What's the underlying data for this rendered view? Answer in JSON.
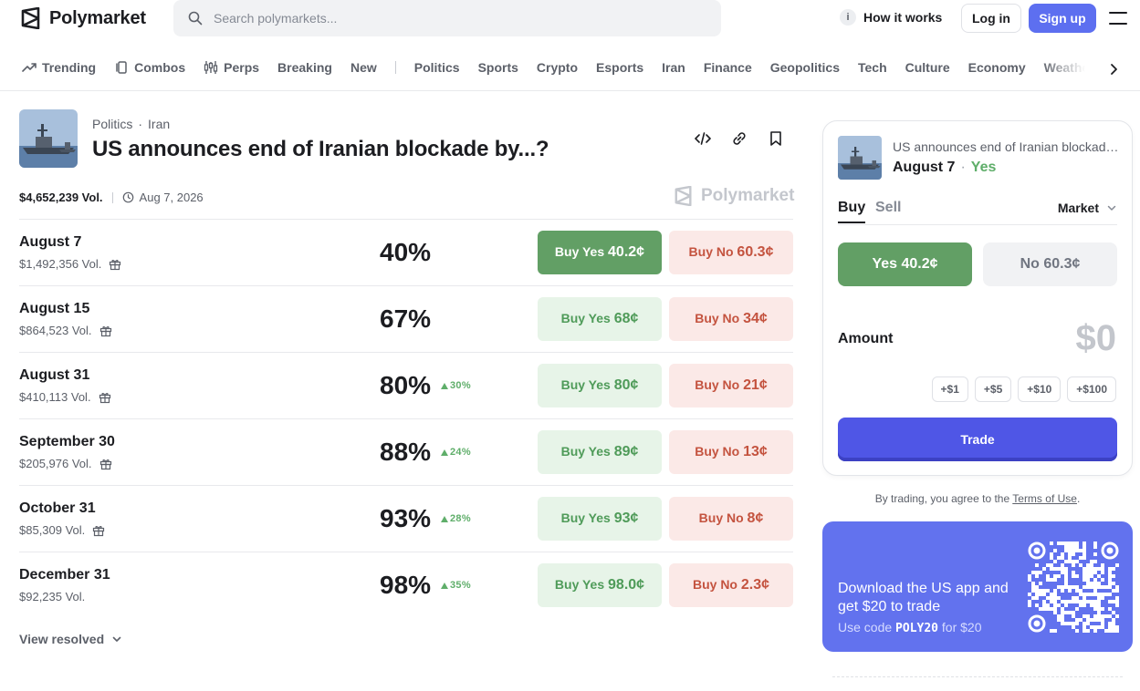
{
  "brand": {
    "name": "Polymarket"
  },
  "search": {
    "placeholder": "Search polymarkets..."
  },
  "header": {
    "how_it_works": "How it works",
    "login": "Log in",
    "signup": "Sign up"
  },
  "nav": {
    "primary": [
      {
        "label": "Trending",
        "icon": "trending-icon"
      },
      {
        "label": "Combos",
        "icon": "combos-icon"
      },
      {
        "label": "Perps",
        "icon": "perps-icon"
      },
      {
        "label": "Breaking"
      },
      {
        "label": "New"
      }
    ],
    "categories": [
      "Politics",
      "Sports",
      "Crypto",
      "Esports",
      "Iran",
      "Finance",
      "Geopolitics",
      "Tech",
      "Culture",
      "Economy",
      "Weather"
    ]
  },
  "event": {
    "breadcrumb": [
      "Politics",
      "Iran"
    ],
    "title": "US announces end of Iranian blockade by...?",
    "volume": "$4,652,239 Vol.",
    "end_date": "Aug 7, 2026",
    "watermark": "Polymarket"
  },
  "markets": [
    {
      "label": "August 7",
      "volume": "$1,492,356 Vol.",
      "gift": true,
      "pct": "40%",
      "change": "",
      "yes": "40.2¢",
      "no": "60.3¢",
      "active": true
    },
    {
      "label": "August 15",
      "volume": "$864,523 Vol.",
      "gift": true,
      "pct": "67%",
      "change": "",
      "yes": "68¢",
      "no": "34¢",
      "active": false
    },
    {
      "label": "August 31",
      "volume": "$410,113 Vol.",
      "gift": true,
      "pct": "80%",
      "change": "30%",
      "yes": "80¢",
      "no": "21¢",
      "active": false
    },
    {
      "label": "September 30",
      "volume": "$205,976 Vol.",
      "gift": true,
      "pct": "88%",
      "change": "24%",
      "yes": "89¢",
      "no": "13¢",
      "active": false
    },
    {
      "label": "October 31",
      "volume": "$85,309 Vol.",
      "gift": true,
      "pct": "93%",
      "change": "28%",
      "yes": "93¢",
      "no": "8¢",
      "active": false
    },
    {
      "label": "December 31",
      "volume": "$92,235 Vol.",
      "gift": false,
      "pct": "98%",
      "change": "35%",
      "yes": "98.0¢",
      "no": "2.3¢",
      "active": false
    }
  ],
  "labels": {
    "buy_yes": "Buy Yes",
    "buy_no": "Buy No",
    "view_resolved": "View resolved"
  },
  "trade": {
    "question": "US announces end of Iranian blockade by...?",
    "outcome_date": "August 7",
    "outcome_side": "Yes",
    "tab_buy": "Buy",
    "tab_sell": "Sell",
    "order_type": "Market",
    "yes_label": "Yes",
    "yes_price": "40.2¢",
    "no_label": "No",
    "no_price": "60.3¢",
    "amount_label": "Amount",
    "amount_value": "$0",
    "quick_amounts": [
      "+$1",
      "+$5",
      "+$10",
      "+$100"
    ],
    "trade_button": "Trade",
    "terms_prefix": "By trading, you agree to the",
    "terms_link": "Terms of Use",
    "terms_suffix": "."
  },
  "promo": {
    "title": "Download the US app and get $20 to trade",
    "code_prefix": "Use code",
    "code": "POLY20",
    "code_suffix": "for $20"
  },
  "colors": {
    "accent": "#5d6ff0",
    "yes": "#629f65",
    "no": "#c4533f",
    "trade": "#4f56e6",
    "promo": "#6272ee"
  }
}
